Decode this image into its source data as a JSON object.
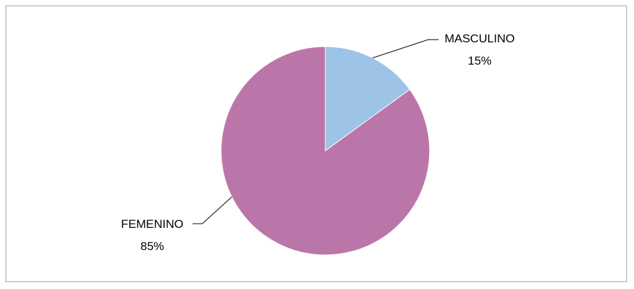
{
  "chart_data": {
    "type": "pie",
    "categories": [
      "MASCULINO",
      "FEMENINO"
    ],
    "values": [
      15,
      85
    ],
    "value_labels": [
      "15%",
      "85%"
    ],
    "colors": [
      "#9dc3e6",
      "#bb76a9"
    ],
    "legend": "none",
    "start_angle": "12 o'clock",
    "direction": "clockwise"
  }
}
